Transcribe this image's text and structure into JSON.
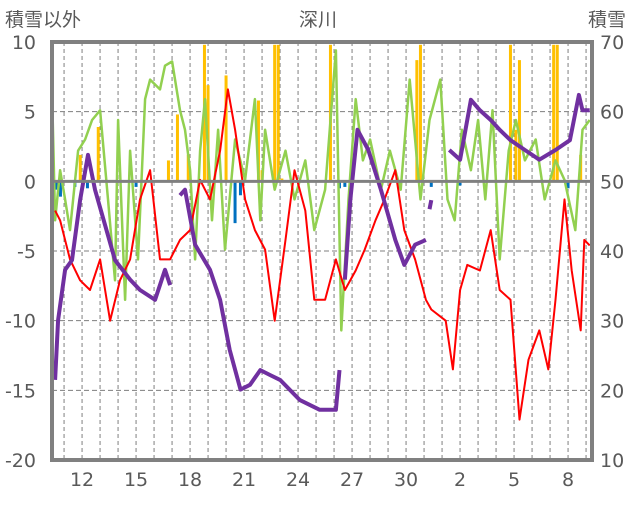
{
  "chart_data": {
    "type": "line",
    "title": "深川",
    "ylabel_left": "積雪以外",
    "ylabel_right": "積雪",
    "ylim_left": [
      -20,
      10
    ],
    "ylim_right": [
      10,
      70
    ],
    "yticks_left": [
      "10",
      "5",
      "0",
      "-5",
      "-10",
      "-15",
      "-20"
    ],
    "yticks_left_values": [
      10,
      5,
      0,
      -5,
      -10,
      -15,
      -20
    ],
    "yticks_right": [
      "70",
      "60",
      "50",
      "40",
      "30",
      "20",
      "10"
    ],
    "yticks_right_values": [
      70,
      60,
      50,
      40,
      30,
      20,
      10
    ],
    "xlim": [
      0.33,
      30.33
    ],
    "xticks": [
      {
        "day": 2,
        "label": "12"
      },
      {
        "day": 5,
        "label": "15"
      },
      {
        "day": 8,
        "label": "18"
      },
      {
        "day": 11,
        "label": "21"
      },
      {
        "day": 14,
        "label": "24"
      },
      {
        "day": 17,
        "label": "27"
      },
      {
        "day": 20,
        "label": "30"
      },
      {
        "day": 23,
        "label": "2"
      },
      {
        "day": 26,
        "label": "5"
      },
      {
        "day": 29,
        "label": "8"
      }
    ],
    "grid": true,
    "colors": {
      "red": "#ff0000",
      "green": "#92d050",
      "purple": "#7030a0",
      "orange": "#ffc000",
      "blue": "#0070c0",
      "axis": "#808080"
    },
    "series": [
      {
        "name": "green",
        "axis": "left",
        "points": [
          [
            0.33,
            6.6
          ],
          [
            0.5,
            -2.8
          ],
          [
            0.78,
            0.8
          ],
          [
            1.06,
            -1.3
          ],
          [
            1.33,
            -3.5
          ],
          [
            1.78,
            2.2
          ],
          [
            2.17,
            3.0
          ],
          [
            2.56,
            4.4
          ],
          [
            3,
            5.1
          ],
          [
            3.44,
            -1.3
          ],
          [
            3.83,
            -7.1
          ],
          [
            4,
            4.4
          ],
          [
            4.39,
            -8.5
          ],
          [
            4.67,
            2.2
          ],
          [
            5.11,
            -5.6
          ],
          [
            5.5,
            5.9
          ],
          [
            5.78,
            7.3
          ],
          [
            6.33,
            6.6
          ],
          [
            6.61,
            8.3
          ],
          [
            7,
            8.6
          ],
          [
            7.44,
            5.1
          ],
          [
            7.72,
            3.7
          ],
          [
            8,
            0.8
          ],
          [
            8.28,
            -5.6
          ],
          [
            8.56,
            2.2
          ],
          [
            8.83,
            5.9
          ],
          [
            9.22,
            -2.8
          ],
          [
            9.56,
            3.7
          ],
          [
            9.94,
            -4.9
          ],
          [
            10.5,
            3.0
          ],
          [
            11.06,
            0.1
          ],
          [
            11.6,
            5.9
          ],
          [
            11.9,
            -2.8
          ],
          [
            12.17,
            3.7
          ],
          [
            12.7,
            -0.6
          ],
          [
            13.3,
            2.2
          ],
          [
            13.8,
            -1.3
          ],
          [
            14.4,
            1.5
          ],
          [
            14.9,
            -3.5
          ],
          [
            15.5,
            -0.6
          ],
          [
            16.1,
            9.4
          ],
          [
            16.4,
            -10.7
          ],
          [
            16.8,
            -1.3
          ],
          [
            17.2,
            5.9
          ],
          [
            17.6,
            1.5
          ],
          [
            18,
            3.0
          ],
          [
            18.6,
            -0.6
          ],
          [
            19.1,
            2.2
          ],
          [
            19.7,
            -0.6
          ],
          [
            20.2,
            7.3
          ],
          [
            20.8,
            -1.3
          ],
          [
            21.3,
            4.4
          ],
          [
            21.9,
            7.3
          ],
          [
            22.3,
            -1.3
          ],
          [
            22.7,
            -2.8
          ],
          [
            23.1,
            3.7
          ],
          [
            23.6,
            0.8
          ],
          [
            24,
            4.4
          ],
          [
            24.4,
            -1.3
          ],
          [
            24.8,
            5.1
          ],
          [
            25.2,
            -5.6
          ],
          [
            25.7,
            2.2
          ],
          [
            26.1,
            4.4
          ],
          [
            26.6,
            1.5
          ],
          [
            27.2,
            3.0
          ],
          [
            27.7,
            -1.3
          ],
          [
            28.3,
            1.5
          ],
          [
            28.8,
            0.1
          ],
          [
            29.4,
            -3.5
          ],
          [
            29.8,
            3.7
          ],
          [
            30.2,
            4.4
          ]
        ]
      },
      {
        "name": "red",
        "axis": "left",
        "points": [
          [
            0.5,
            -2.1
          ],
          [
            0.78,
            -2.8
          ],
          [
            1.33,
            -5.6
          ],
          [
            1.89,
            -7.1
          ],
          [
            2.44,
            -7.8
          ],
          [
            3,
            -5.6
          ],
          [
            3.56,
            -10.0
          ],
          [
            4.11,
            -7.1
          ],
          [
            4.67,
            -5.6
          ],
          [
            5.22,
            -1.3
          ],
          [
            5.78,
            0.8
          ],
          [
            6.33,
            -5.6
          ],
          [
            6.89,
            -5.6
          ],
          [
            7.44,
            -4.2
          ],
          [
            8,
            -3.5
          ],
          [
            8.56,
            0.1
          ],
          [
            9.11,
            -1.3
          ],
          [
            9.67,
            2.2
          ],
          [
            10.1,
            6.6
          ],
          [
            10.5,
            3.7
          ],
          [
            11.06,
            -1.3
          ],
          [
            11.6,
            -3.5
          ],
          [
            12.17,
            -4.9
          ],
          [
            12.7,
            -10.0
          ],
          [
            13.3,
            -4.2
          ],
          [
            13.8,
            0.8
          ],
          [
            14.4,
            -2.1
          ],
          [
            14.9,
            -8.5
          ],
          [
            15.5,
            -8.5
          ],
          [
            16.1,
            -5.6
          ],
          [
            16.6,
            -7.8
          ],
          [
            17.2,
            -6.4
          ],
          [
            17.7,
            -4.9
          ],
          [
            18.3,
            -2.8
          ],
          [
            18.8,
            -1.3
          ],
          [
            19.4,
            0.8
          ],
          [
            19.9,
            -3.5
          ],
          [
            20.5,
            -5.6
          ],
          [
            21.1,
            -8.5
          ],
          [
            21.4,
            -9.2
          ],
          [
            22.2,
            -10.0
          ],
          [
            22.6,
            -13.5
          ],
          [
            23,
            -7.8
          ],
          [
            23.4,
            -6.0
          ],
          [
            24.1,
            -6.4
          ],
          [
            24.7,
            -3.5
          ],
          [
            25.2,
            -7.8
          ],
          [
            25.8,
            -8.5
          ],
          [
            26.3,
            -17.1
          ],
          [
            26.8,
            -12.8
          ],
          [
            27.4,
            -10.7
          ],
          [
            27.9,
            -13.5
          ],
          [
            28.3,
            -8.5
          ],
          [
            28.8,
            -1.3
          ],
          [
            29.2,
            -6.4
          ],
          [
            29.7,
            -10.7
          ],
          [
            29.9,
            -4.2
          ],
          [
            30.2,
            -4.6
          ]
        ]
      },
      {
        "name": "purple",
        "axis": "right",
        "points": [
          [
            0.5,
            21.5
          ],
          [
            0.67,
            30.1
          ],
          [
            1.06,
            37.3
          ],
          [
            1.44,
            38.7
          ],
          [
            1.89,
            47.3
          ],
          [
            2.33,
            53.8
          ],
          [
            2.72,
            48.8
          ],
          [
            3.28,
            43.7
          ],
          [
            3.83,
            38.7
          ],
          [
            4.67,
            35.9
          ],
          [
            5.22,
            34.4
          ],
          [
            6.06,
            33.0
          ],
          [
            6.61,
            37.3
          ],
          [
            6.89,
            35.1
          ],
          null,
          [
            7.44,
            48.0
          ],
          [
            7.72,
            48.8
          ],
          [
            8.28,
            40.9
          ],
          [
            9.11,
            37.3
          ],
          [
            9.67,
            33.0
          ],
          [
            10.2,
            25.8
          ],
          [
            10.8,
            20.1
          ],
          [
            11.33,
            20.8
          ],
          [
            11.9,
            22.9
          ],
          [
            12.44,
            22.2
          ],
          [
            13,
            21.5
          ],
          [
            14.1,
            18.6
          ],
          [
            15.2,
            17.2
          ],
          [
            16.1,
            17.2
          ],
          [
            16.3,
            22.9
          ],
          null,
          [
            16.6,
            35.9
          ],
          [
            16.9,
            47.3
          ],
          [
            17.3,
            57.4
          ],
          [
            17.9,
            54.5
          ],
          [
            18.6,
            48.8
          ],
          [
            19.4,
            41.6
          ],
          [
            19.9,
            38.0
          ],
          [
            20.5,
            40.9
          ],
          [
            21.1,
            41.6
          ],
          null,
          [
            21.3,
            46.0
          ],
          [
            21.4,
            47.3
          ],
          null,
          [
            22.4,
            54.5
          ],
          [
            23,
            53.1
          ],
          [
            23.6,
            61.7
          ],
          [
            24.1,
            60.2
          ],
          [
            24.7,
            58.8
          ],
          [
            25.2,
            57.4
          ],
          [
            25.8,
            55.9
          ],
          [
            26.6,
            54.5
          ],
          [
            27.4,
            53.1
          ],
          [
            28.3,
            54.5
          ],
          [
            29.1,
            55.9
          ],
          [
            29.6,
            62.4
          ],
          [
            29.8,
            60.2
          ],
          [
            30.2,
            60.2
          ]
        ]
      }
    ],
    "bars_positive": {
      "name": "orange",
      "axis": "left",
      "points": [
        [
          1.9,
          1.9
        ],
        [
          2.9,
          3.9
        ],
        [
          6.8,
          1.5
        ],
        [
          7.3,
          4.8
        ],
        [
          7.9,
          1.9
        ],
        [
          8.8,
          9.8
        ],
        [
          9.0,
          6.9
        ],
        [
          10.0,
          7.6
        ],
        [
          11.8,
          5.8
        ],
        [
          12.0,
          0.8
        ],
        [
          12.7,
          9.8
        ],
        [
          12.9,
          9.8
        ],
        [
          13.1,
          0.2
        ],
        [
          15.8,
          9.8
        ],
        [
          20.6,
          8.7
        ],
        [
          20.8,
          9.8
        ],
        [
          25.8,
          9.8
        ],
        [
          26.1,
          3.7
        ],
        [
          26.3,
          8.7
        ],
        [
          28.2,
          9.8
        ],
        [
          28.4,
          9.8
        ],
        [
          29.7,
          1.9
        ]
      ]
    },
    "bars_negative": {
      "name": "blue",
      "axis": "left",
      "points": [
        [
          0.6,
          -0.6
        ],
        [
          0.8,
          -1.1
        ],
        [
          1.6,
          -0.4
        ],
        [
          2.3,
          -0.5
        ],
        [
          5.0,
          -0.4
        ],
        [
          10.5,
          -3.0
        ],
        [
          10.8,
          -1.0
        ],
        [
          16.3,
          -0.5
        ],
        [
          16.6,
          -0.4
        ],
        [
          19.6,
          -0.5
        ],
        [
          21.4,
          -0.4
        ],
        [
          23.0,
          -0.3
        ],
        [
          29.0,
          -0.5
        ]
      ]
    }
  }
}
